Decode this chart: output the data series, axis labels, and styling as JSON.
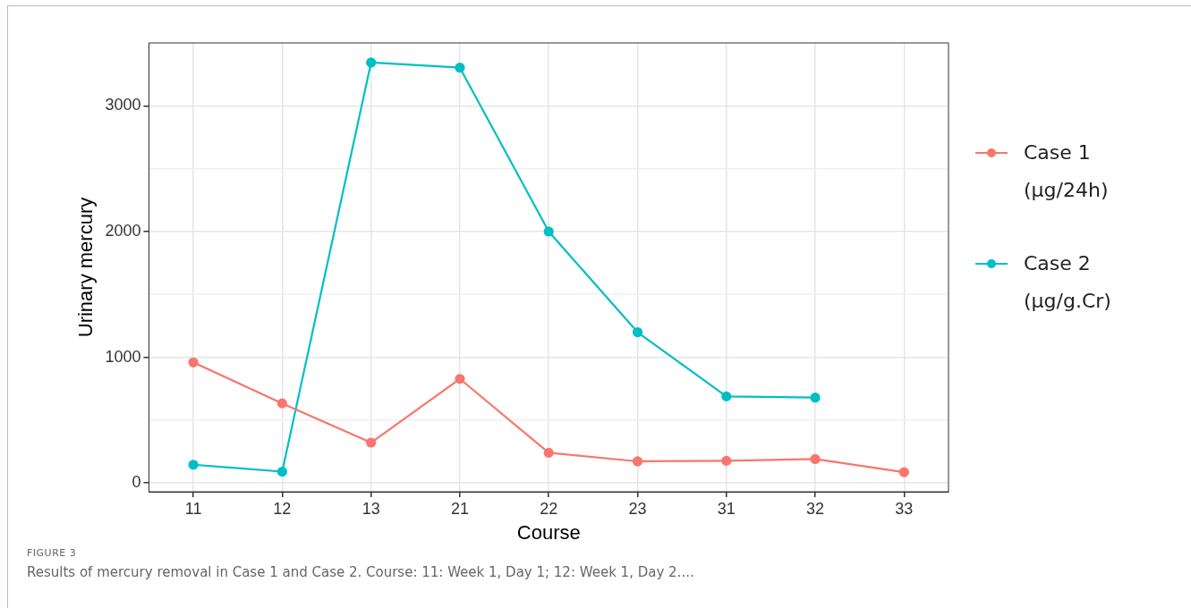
{
  "chart_data": {
    "type": "line",
    "xlabel": "Course",
    "ylabel": "Urinary mercury",
    "categories": [
      "11",
      "12",
      "13",
      "21",
      "22",
      "23",
      "31",
      "32",
      "33"
    ],
    "series": [
      {
        "name": "Case 1 (µg/24h)",
        "color": "#f8766d",
        "values": [
          959,
          633,
          321,
          828,
          240,
          172,
          176,
          190,
          86
        ]
      },
      {
        "name": "Case 2 (µg/g.Cr)",
        "color": "#00bfc4",
        "values": [
          145,
          90,
          3344,
          3303,
          2000,
          1199,
          688,
          679,
          null
        ]
      }
    ],
    "ylim": [
      -70,
      3500
    ],
    "yticks": [
      0,
      {
        "value": 500,
        "label": null
      },
      1000,
      {
        "value": 1500,
        "label": null
      },
      2000,
      {
        "value": 2500,
        "label": null
      },
      3000
    ],
    "grid": true,
    "legend": "right",
    "marker": "circle",
    "line_style": "solid",
    "annotations": [
      "FIGURE 3",
      "Results of mercury removal in Case 1 and Case 2. Course: 11: Week 1, Day 1; 12: Week 1, Day 2...."
    ]
  }
}
